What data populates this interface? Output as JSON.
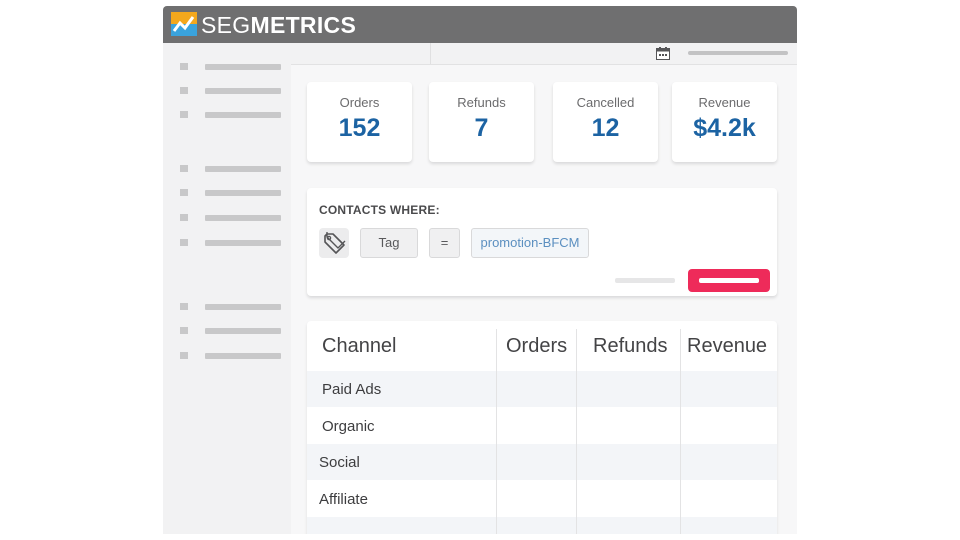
{
  "app": {
    "brand_light": "SEG",
    "brand_bold": "METRICS",
    "accent": "#1c63a3",
    "button_color": "#ee2b5a"
  },
  "stats": [
    {
      "label": "Orders",
      "value": "152"
    },
    {
      "label": "Refunds",
      "value": "7"
    },
    {
      "label": "Cancelled",
      "value": "12"
    },
    {
      "label": "Revenue",
      "value": "$4.2k"
    }
  ],
  "filter": {
    "title": "CONTACTS WHERE:",
    "field": "Tag",
    "operator": "=",
    "value": "promotion-BFCM",
    "icon": "tag-icon"
  },
  "table": {
    "headers": [
      "Channel",
      "Orders",
      "Refunds",
      "Revenue"
    ],
    "rows": [
      "Paid Ads",
      "Organic",
      "Social",
      "Affiliate"
    ]
  }
}
